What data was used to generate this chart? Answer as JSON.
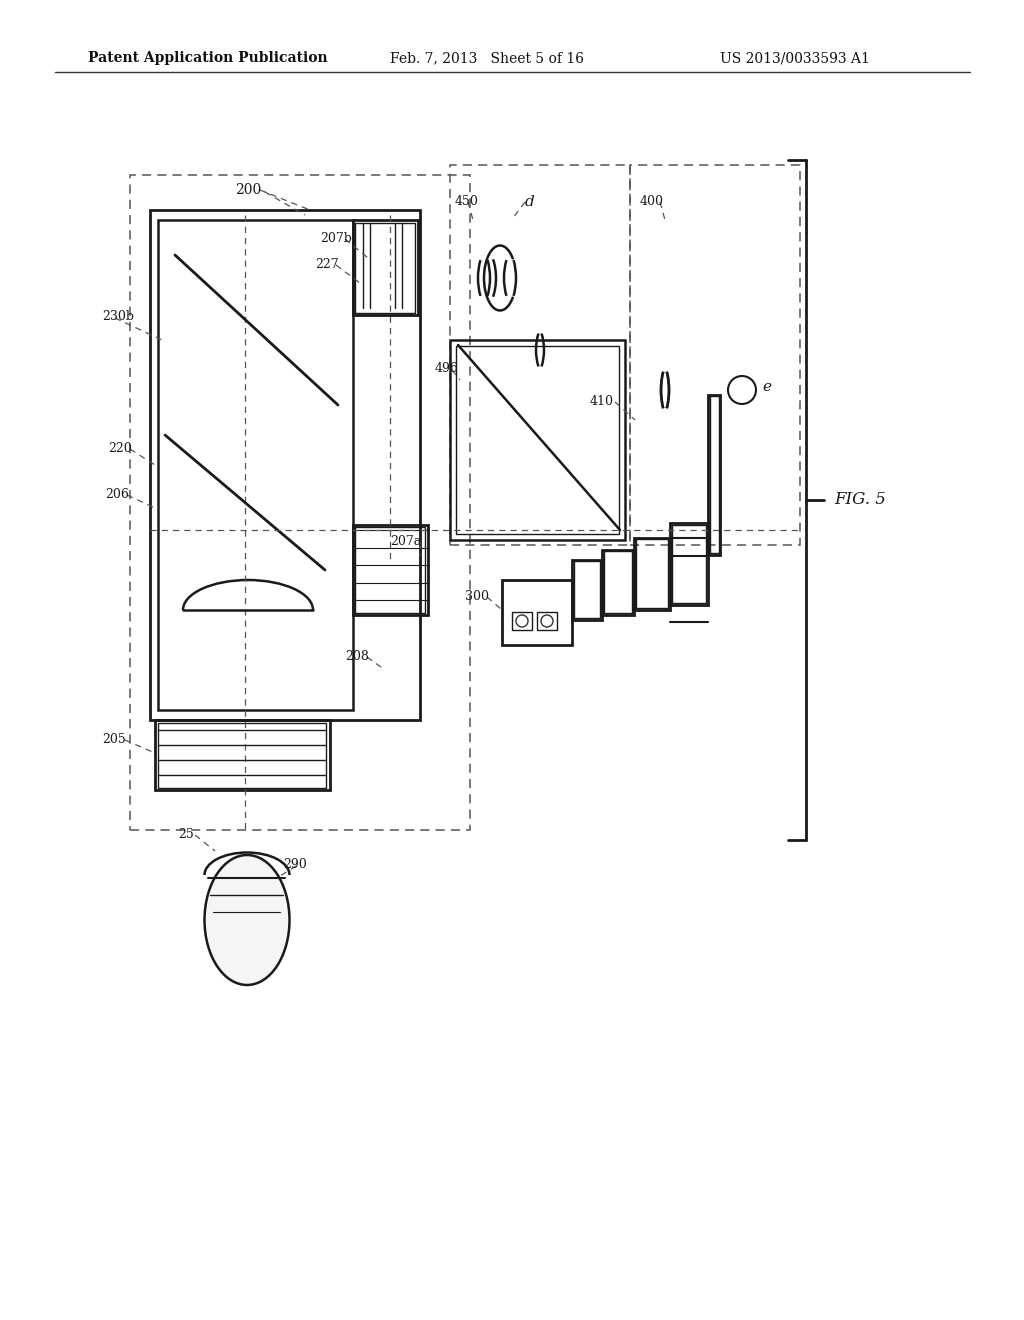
{
  "bg_color": "#ffffff",
  "header_left": "Patent Application Publication",
  "header_center": "Feb. 7, 2013   Sheet 5 of 16",
  "header_right": "US 2013/0033593 A1",
  "fig_label": "FIG. 5"
}
